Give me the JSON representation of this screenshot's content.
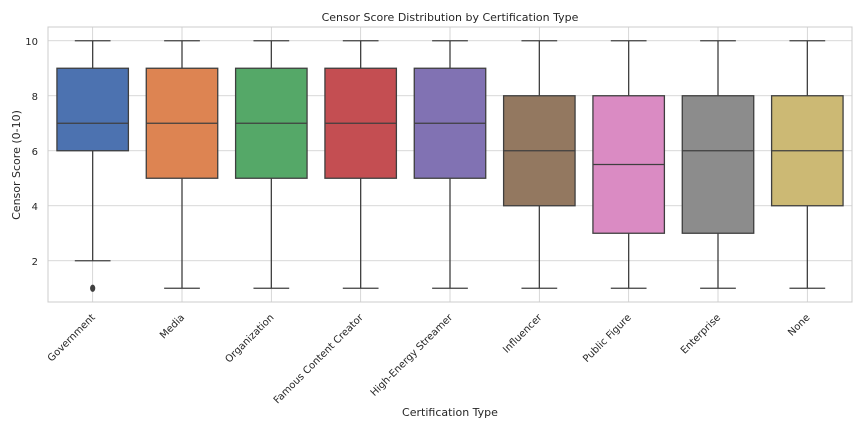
{
  "chart_data": {
    "type": "box",
    "title": "Censor Score Distribution by Certification Type",
    "xlabel": "Certification Type",
    "ylabel": "Censor Score (0-10)",
    "ylim": [
      0.5,
      10.5
    ],
    "yticks": [
      2,
      4,
      6,
      8,
      10
    ],
    "grid": true,
    "categories": [
      "Government",
      "Media",
      "Organization",
      "Famous Content Creator",
      "High-Energy Streamer",
      "Influencer",
      "Public Figure",
      "Enterprise",
      "None"
    ],
    "boxes": [
      {
        "min": 2,
        "q1": 6,
        "median": 7,
        "q3": 9,
        "max": 10,
        "outliers": [
          1
        ],
        "color": "#4C72B0"
      },
      {
        "min": 1,
        "q1": 5,
        "median": 7,
        "q3": 9,
        "max": 10,
        "outliers": [],
        "color": "#DD8452"
      },
      {
        "min": 1,
        "q1": 5,
        "median": 7,
        "q3": 9,
        "max": 10,
        "outliers": [],
        "color": "#55A868"
      },
      {
        "min": 1,
        "q1": 5,
        "median": 7,
        "q3": 9,
        "max": 10,
        "outliers": [],
        "color": "#C44E52"
      },
      {
        "min": 1,
        "q1": 5,
        "median": 7,
        "q3": 9,
        "max": 10,
        "outliers": [],
        "color": "#8172B3"
      },
      {
        "min": 1,
        "q1": 4,
        "median": 6,
        "q3": 8,
        "max": 10,
        "outliers": [],
        "color": "#937860"
      },
      {
        "min": 1,
        "q1": 3,
        "median": 5.5,
        "q3": 8,
        "max": 10,
        "outliers": [],
        "color": "#DA8BC3"
      },
      {
        "min": 1,
        "q1": 3,
        "median": 6,
        "q3": 8,
        "max": 10,
        "outliers": [],
        "color": "#8C8C8C"
      },
      {
        "min": 1,
        "q1": 4,
        "median": 6,
        "q3": 8,
        "max": 10,
        "outliers": [],
        "color": "#CCB974"
      }
    ]
  }
}
